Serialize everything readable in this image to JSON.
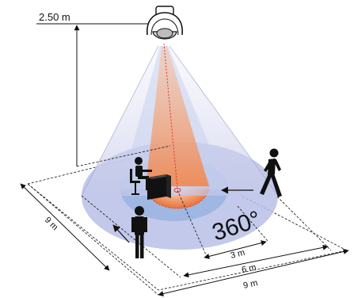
{
  "height_label": "2.50 m",
  "coverage_angle": "360°",
  "dimensions": {
    "area_width": "9 m",
    "area_depth": "9 m",
    "radius_inner": "3 m",
    "radius_middle": "6 m"
  },
  "colors": {
    "outer_zone": "#b9c0e6",
    "middle_zone": "#9fb7e2",
    "inner_zone": "#f28a4e",
    "beam": "#f6b48f",
    "detection_line": "#e0251c",
    "figure": "#111111"
  }
}
